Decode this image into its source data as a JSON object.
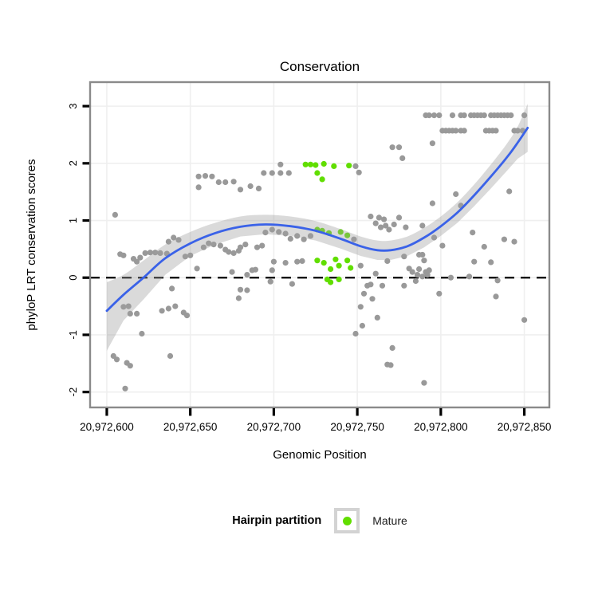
{
  "title": "Conservation",
  "axes": {
    "xlabel": "Genomic Position",
    "ylabel": "phyloP LRT conservation scores",
    "x_tick_labels": [
      "20,972,600",
      "20,972,650",
      "20,972,700",
      "20,972,750",
      "20,972,800",
      "20,972,850"
    ],
    "x_tick_values": [
      20972600,
      20972650,
      20972700,
      20972750,
      20972800,
      20972850
    ],
    "y_tick_labels": [
      "-2",
      "-1",
      "0",
      "1",
      "2",
      "3"
    ],
    "y_tick_values": [
      -2,
      -1,
      0,
      1,
      2,
      3
    ]
  },
  "legend": {
    "title": "Hairpin partition",
    "items": [
      {
        "label": "Mature",
        "color": "#61DE00"
      }
    ]
  },
  "colors": {
    "point_other": "#999999",
    "point_mature": "#61DE00",
    "smooth_line": "#3A62E8",
    "confidence_band": "#9E9E9E",
    "zero_line": "#000000",
    "gridline": "#EFEFEF",
    "panel_border": "#8A8A8A",
    "tick": "#000000"
  },
  "chart_data": {
    "type": "scatter",
    "title": "Conservation",
    "xlabel": "Genomic Position",
    "ylabel": "phyloP LRT conservation scores",
    "xlim": [
      20972590,
      20972865
    ],
    "ylim": [
      -2.27,
      3.42
    ],
    "grid": true,
    "legend_position": "bottom",
    "reference_line_y": 0,
    "series": [
      {
        "name": "Other",
        "color": "#999999",
        "points": [
          [
            20972605,
            1.1
          ],
          [
            20972608,
            0.41
          ],
          [
            20972610,
            0.39
          ],
          [
            20972616,
            0.33
          ],
          [
            20972618,
            0.28
          ],
          [
            20972620,
            0.35
          ],
          [
            20972623,
            0.43
          ],
          [
            20972626,
            0.44
          ],
          [
            20972629,
            0.44
          ],
          [
            20972632,
            0.43
          ],
          [
            20972636,
            0.42
          ],
          [
            20972637,
            0.63
          ],
          [
            20972640,
            0.7
          ],
          [
            20972643,
            0.66
          ],
          [
            20972647,
            0.37
          ],
          [
            20972650,
            0.39
          ],
          [
            20972654,
            0.16
          ],
          [
            20972658,
            0.53
          ],
          [
            20972661,
            0.6
          ],
          [
            20972664,
            0.58
          ],
          [
            20972668,
            0.56
          ],
          [
            20972671,
            0.49
          ],
          [
            20972673,
            0.45
          ],
          [
            20972676,
            0.43
          ],
          [
            20972679,
            0.47
          ],
          [
            20972675,
            0.1
          ],
          [
            20972639,
            -0.19
          ],
          [
            20972610,
            -0.51
          ],
          [
            20972613,
            -0.5
          ],
          [
            20972614,
            -0.63
          ],
          [
            20972618,
            -0.63
          ],
          [
            20972633,
            -0.58
          ],
          [
            20972637,
            -0.54
          ],
          [
            20972641,
            -0.5
          ],
          [
            20972646,
            -0.61
          ],
          [
            20972648,
            -0.66
          ],
          [
            20972621,
            -0.98
          ],
          [
            20972604,
            -1.37
          ],
          [
            20972606,
            -1.43
          ],
          [
            20972612,
            -1.49
          ],
          [
            20972614,
            -1.54
          ],
          [
            20972638,
            -1.37
          ],
          [
            20972611,
            -1.94
          ],
          [
            20972655,
            1.77
          ],
          [
            20972659,
            1.78
          ],
          [
            20972663,
            1.77
          ],
          [
            20972667,
            1.67
          ],
          [
            20972671,
            1.67
          ],
          [
            20972676,
            1.68
          ],
          [
            20972655,
            1.58
          ],
          [
            20972680,
            1.54
          ],
          [
            20972686,
            1.6
          ],
          [
            20972691,
            1.56
          ],
          [
            20972694,
            1.83
          ],
          [
            20972699,
            1.83
          ],
          [
            20972704,
            1.83
          ],
          [
            20972709,
            1.83
          ],
          [
            20972704,
            1.98
          ],
          [
            20972749,
            1.95
          ],
          [
            20972751,
            1.84
          ],
          [
            20972680,
            0.53
          ],
          [
            20972683,
            0.58
          ],
          [
            20972690,
            0.53
          ],
          [
            20972693,
            0.56
          ],
          [
            20972695,
            0.79
          ],
          [
            20972699,
            0.84
          ],
          [
            20972703,
            0.8
          ],
          [
            20972707,
            0.77
          ],
          [
            20972710,
            0.68
          ],
          [
            20972714,
            0.73
          ],
          [
            20972718,
            0.67
          ],
          [
            20972722,
            0.73
          ],
          [
            20972748,
            0.67
          ],
          [
            20972700,
            0.28
          ],
          [
            20972707,
            0.26
          ],
          [
            20972714,
            0.28
          ],
          [
            20972717,
            0.29
          ],
          [
            20972699,
            0.13
          ],
          [
            20972684,
            0.05
          ],
          [
            20972687,
            0.13
          ],
          [
            20972689,
            0.14
          ],
          [
            20972698,
            -0.07
          ],
          [
            20972711,
            -0.11
          ],
          [
            20972680,
            -0.21
          ],
          [
            20972684,
            -0.22
          ],
          [
            20972679,
            -0.36
          ],
          [
            20972752,
            0.21
          ],
          [
            20972758,
            1.07
          ],
          [
            20972761,
            0.95
          ],
          [
            20972763,
            1.05
          ],
          [
            20972764,
            0.88
          ],
          [
            20972766,
            1.02
          ],
          [
            20972767,
            0.91
          ],
          [
            20972769,
            0.84
          ],
          [
            20972772,
            0.93
          ],
          [
            20972775,
            1.05
          ],
          [
            20972779,
            0.88
          ],
          [
            20972789,
            0.91
          ],
          [
            20972761,
            0.07
          ],
          [
            20972756,
            -0.14
          ],
          [
            20972758,
            -0.12
          ],
          [
            20972754,
            -0.28
          ],
          [
            20972759,
            -0.37
          ],
          [
            20972765,
            -0.14
          ],
          [
            20972752,
            -0.51
          ],
          [
            20972762,
            -0.7
          ],
          [
            20972749,
            -0.98
          ],
          [
            20972753,
            -0.84
          ],
          [
            20972768,
            -1.52
          ],
          [
            20972770,
            -1.53
          ],
          [
            20972771,
            -1.23
          ],
          [
            20972790,
            -1.84
          ],
          [
            20972768,
            0.29
          ],
          [
            20972778,
            0.37
          ],
          [
            20972787,
            0.4
          ],
          [
            20972789,
            0.4
          ],
          [
            20972790,
            0.3
          ],
          [
            20972781,
            0.16
          ],
          [
            20972783,
            0.1
          ],
          [
            20972785,
            -0.06
          ],
          [
            20972786,
            0.05
          ],
          [
            20972787,
            0.15
          ],
          [
            20972789,
            0.02
          ],
          [
            20972791,
            0.1
          ],
          [
            20972792,
            0.05
          ],
          [
            20972793,
            0.13
          ],
          [
            20972778,
            -0.14
          ],
          [
            20972771,
            2.28
          ],
          [
            20972775,
            2.28
          ],
          [
            20972777,
            2.09
          ],
          [
            20972795,
            2.35
          ],
          [
            20972795,
            1.3
          ],
          [
            20972809,
            1.46
          ],
          [
            20972812,
            1.26
          ],
          [
            20972841,
            1.51
          ],
          [
            20972796,
            0.7
          ],
          [
            20972801,
            0.56
          ],
          [
            20972819,
            0.79
          ],
          [
            20972826,
            0.54
          ],
          [
            20972838,
            0.67
          ],
          [
            20972844,
            0.63
          ],
          [
            20972806,
            0.0
          ],
          [
            20972817,
            0.02
          ],
          [
            20972820,
            0.28
          ],
          [
            20972830,
            0.27
          ],
          [
            20972834,
            -0.05
          ],
          [
            20972799,
            -0.28
          ],
          [
            20972833,
            -0.33
          ],
          [
            20972850,
            -0.74
          ],
          [
            20972791,
            2.84
          ],
          [
            20972793,
            2.84
          ],
          [
            20972796,
            2.84
          ],
          [
            20972799,
            2.84
          ],
          [
            20972807,
            2.84
          ],
          [
            20972812,
            2.84
          ],
          [
            20972814,
            2.84
          ],
          [
            20972818,
            2.84
          ],
          [
            20972820,
            2.84
          ],
          [
            20972822,
            2.84
          ],
          [
            20972824,
            2.84
          ],
          [
            20972826,
            2.84
          ],
          [
            20972830,
            2.84
          ],
          [
            20972832,
            2.84
          ],
          [
            20972834,
            2.84
          ],
          [
            20972836,
            2.84
          ],
          [
            20972838,
            2.84
          ],
          [
            20972840,
            2.84
          ],
          [
            20972842,
            2.84
          ],
          [
            20972850,
            2.84
          ],
          [
            20972801,
            2.57
          ],
          [
            20972803,
            2.57
          ],
          [
            20972805,
            2.57
          ],
          [
            20972807,
            2.57
          ],
          [
            20972809,
            2.57
          ],
          [
            20972812,
            2.57
          ],
          [
            20972814,
            2.57
          ],
          [
            20972827,
            2.57
          ],
          [
            20972829,
            2.57
          ],
          [
            20972831,
            2.57
          ],
          [
            20972833,
            2.57
          ],
          [
            20972844,
            2.57
          ],
          [
            20972846,
            2.57
          ],
          [
            20972849,
            2.57
          ]
        ]
      },
      {
        "name": "Mature",
        "color": "#61DE00",
        "points": [
          [
            20972719,
            1.98
          ],
          [
            20972722,
            1.98
          ],
          [
            20972725,
            1.97
          ],
          [
            20972730,
            1.99
          ],
          [
            20972736,
            1.95
          ],
          [
            20972745,
            1.96
          ],
          [
            20972726,
            1.83
          ],
          [
            20972729,
            1.72
          ],
          [
            20972726,
            0.84
          ],
          [
            20972729,
            0.82
          ],
          [
            20972733,
            0.78
          ],
          [
            20972740,
            0.8
          ],
          [
            20972744,
            0.74
          ],
          [
            20972726,
            0.3
          ],
          [
            20972730,
            0.26
          ],
          [
            20972734,
            0.15
          ],
          [
            20972737,
            0.32
          ],
          [
            20972739,
            0.21
          ],
          [
            20972744,
            0.3
          ],
          [
            20972746,
            0.17
          ],
          [
            20972732,
            -0.03
          ],
          [
            20972734,
            -0.08
          ],
          [
            20972739,
            -0.03
          ]
        ]
      }
    ],
    "smooth": {
      "color": "#3A62E8",
      "points": [
        [
          20972600,
          -0.58
        ],
        [
          20972610,
          -0.3
        ],
        [
          20972622,
          0.0
        ],
        [
          20972635,
          0.34
        ],
        [
          20972650,
          0.6
        ],
        [
          20972665,
          0.78
        ],
        [
          20972680,
          0.89
        ],
        [
          20972695,
          0.93
        ],
        [
          20972710,
          0.9
        ],
        [
          20972725,
          0.82
        ],
        [
          20972740,
          0.68
        ],
        [
          20972752,
          0.55
        ],
        [
          20972762,
          0.48
        ],
        [
          20972770,
          0.48
        ],
        [
          20972780,
          0.55
        ],
        [
          20972790,
          0.7
        ],
        [
          20972800,
          0.9
        ],
        [
          20972810,
          1.14
        ],
        [
          20972820,
          1.44
        ],
        [
          20972830,
          1.77
        ],
        [
          20972840,
          2.12
        ],
        [
          20972846,
          2.36
        ],
        [
          20972852,
          2.62
        ]
      ],
      "band": [
        [
          20972600,
          -1.28,
          -0.08
        ],
        [
          20972610,
          -0.75,
          0.05
        ],
        [
          20972622,
          -0.38,
          0.3
        ],
        [
          20972635,
          0.05,
          0.58
        ],
        [
          20972650,
          0.38,
          0.8
        ],
        [
          20972665,
          0.58,
          0.96
        ],
        [
          20972680,
          0.72,
          1.07
        ],
        [
          20972695,
          0.76,
          1.1
        ],
        [
          20972710,
          0.73,
          1.07
        ],
        [
          20972725,
          0.65,
          0.99
        ],
        [
          20972740,
          0.51,
          0.85
        ],
        [
          20972752,
          0.38,
          0.72
        ],
        [
          20972762,
          0.31,
          0.65
        ],
        [
          20972770,
          0.31,
          0.65
        ],
        [
          20972780,
          0.38,
          0.72
        ],
        [
          20972790,
          0.53,
          0.87
        ],
        [
          20972800,
          0.73,
          1.07
        ],
        [
          20972810,
          0.96,
          1.32
        ],
        [
          20972820,
          1.25,
          1.63
        ],
        [
          20972830,
          1.56,
          1.98
        ],
        [
          20972840,
          1.88,
          2.36
        ],
        [
          20972846,
          2.08,
          2.64
        ],
        [
          20972852,
          2.2,
          3.04
        ]
      ]
    }
  }
}
